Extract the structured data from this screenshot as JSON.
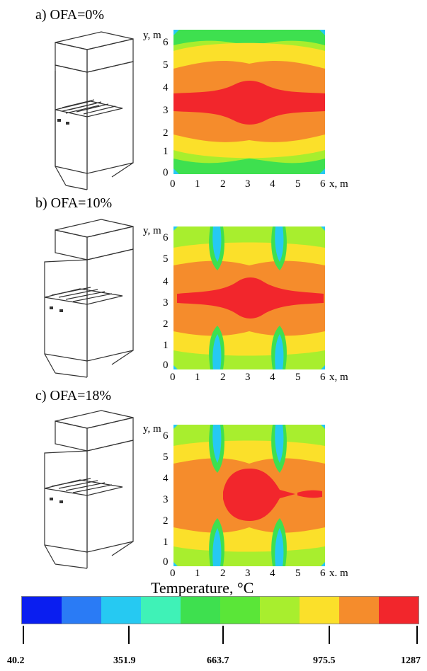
{
  "panels": [
    {
      "label": "a) OFA=0%"
    },
    {
      "label": "b) OFA=10%"
    },
    {
      "label": "c) OFA=18%"
    }
  ],
  "axes": {
    "y_label": "y, m",
    "x_label": "x, m",
    "x_label_c": "x. m",
    "x_ticks": [
      "0",
      "1",
      "2",
      "3",
      "4",
      "5",
      "6"
    ],
    "y_ticks": [
      "0",
      "1",
      "2",
      "3",
      "4",
      "5",
      "6"
    ]
  },
  "colorbar": {
    "title": "Temperature, °C",
    "tick_labels": [
      "40.2",
      "351.9",
      "663.7",
      "975.5",
      "1287"
    ],
    "colors": [
      "#0a1ef0",
      "#2a7bf5",
      "#26c9f2",
      "#3ff2b7",
      "#3ee04f",
      "#5ae638",
      "#a8ee2e",
      "#fbe02a",
      "#f58c2c",
      "#f2262c"
    ]
  }
}
